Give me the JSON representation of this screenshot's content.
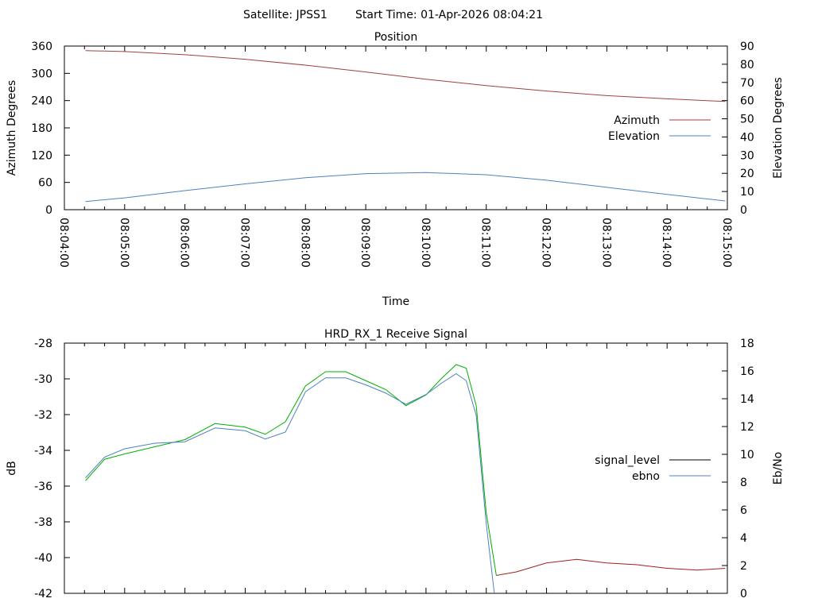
{
  "header": {
    "satellite_label": "Satellite: JPSS1",
    "start_time_label": "Start Time: 01-Apr-2026 08:04:21"
  },
  "chart_data": [
    {
      "type": "line",
      "title": "Position",
      "xlabel": "Time",
      "ylabel": "Azimuth Degrees",
      "y2label": "Elevation Degrees",
      "x_ticks": [
        "08:04:00",
        "08:05:00",
        "08:06:00",
        "08:07:00",
        "08:08:00",
        "08:09:00",
        "08:10:00",
        "08:11:00",
        "08:12:00",
        "08:13:00",
        "08:14:00",
        "08:15:00"
      ],
      "xlim": [
        "08:04:00",
        "08:15:00"
      ],
      "ylim": [
        0,
        360
      ],
      "y_ticks": [
        0,
        60,
        120,
        180,
        240,
        300,
        360
      ],
      "y2lim": [
        0,
        90
      ],
      "y2_ticks": [
        0,
        10,
        20,
        30,
        40,
        50,
        60,
        70,
        80,
        90
      ],
      "legend_position": "right",
      "series": [
        {
          "name": "Azimuth",
          "axis": "y",
          "color": "#a04040",
          "x": [
            "08:04:21",
            "08:05:00",
            "08:06:00",
            "08:07:00",
            "08:08:00",
            "08:09:00",
            "08:10:00",
            "08:11:00",
            "08:12:00",
            "08:13:00",
            "08:14:00",
            "08:14:58"
          ],
          "values": [
            350,
            348,
            341,
            331,
            318,
            303,
            287,
            273,
            261,
            251,
            244,
            238
          ]
        },
        {
          "name": "Elevation",
          "axis": "y2",
          "color": "#4f81bd",
          "x": [
            "08:04:21",
            "08:05:00",
            "08:06:00",
            "08:07:00",
            "08:08:00",
            "08:09:00",
            "08:10:00",
            "08:11:00",
            "08:12:00",
            "08:13:00",
            "08:14:00",
            "08:14:58"
          ],
          "values": [
            4.5,
            6.5,
            10.5,
            14.2,
            17.6,
            19.8,
            20.4,
            19.2,
            16.2,
            12.3,
            8.4,
            4.8
          ]
        }
      ]
    },
    {
      "type": "line",
      "title": "HRD_RX_1 Receive Signal",
      "xlabel": "",
      "ylabel": "dB",
      "y2label": "Eb/No",
      "xlim": [
        "08:04:00",
        "08:15:00"
      ],
      "ylim": [
        -42,
        -28
      ],
      "y_ticks": [
        -42,
        -40,
        -38,
        -36,
        -34,
        -32,
        -30,
        -28
      ],
      "y2lim": [
        0,
        18
      ],
      "y2_ticks": [
        0,
        2,
        4,
        6,
        8,
        10,
        12,
        14,
        16,
        18
      ],
      "legend_position": "right",
      "series": [
        {
          "name": "signal_level",
          "axis": "y",
          "color": "#000000",
          "segment_colors": {
            "default": "#00b000",
            "low_signal": "#a02020"
          },
          "x": [
            "08:04:21",
            "08:04:40",
            "08:05:00",
            "08:05:30",
            "08:06:00",
            "08:06:30",
            "08:07:00",
            "08:07:20",
            "08:07:40",
            "08:08:00",
            "08:08:20",
            "08:08:40",
            "08:09:00",
            "08:09:20",
            "08:09:40",
            "08:10:00",
            "08:10:15",
            "08:10:30",
            "08:10:40",
            "08:10:50",
            "08:11:00",
            "08:11:10",
            "08:11:30",
            "08:12:00",
            "08:12:30",
            "08:13:00",
            "08:13:30",
            "08:14:00",
            "08:14:30",
            "08:14:58"
          ],
          "values": [
            -35.7,
            -34.5,
            -34.2,
            -33.8,
            -33.4,
            -32.5,
            -32.7,
            -33.1,
            -32.4,
            -30.4,
            -29.6,
            -29.6,
            -30.1,
            -30.6,
            -31.5,
            -30.9,
            -30.0,
            -29.2,
            -29.4,
            -31.5,
            -37.5,
            -41.0,
            -40.8,
            -40.3,
            -40.1,
            -40.3,
            -40.4,
            -40.6,
            -40.7,
            -40.6
          ]
        },
        {
          "name": "ebno",
          "axis": "y2",
          "color": "#4f81bd",
          "x": [
            "08:04:21",
            "08:04:40",
            "08:05:00",
            "08:05:30",
            "08:06:00",
            "08:06:30",
            "08:07:00",
            "08:07:20",
            "08:07:40",
            "08:08:00",
            "08:08:20",
            "08:08:40",
            "08:09:00",
            "08:09:20",
            "08:09:40",
            "08:10:00",
            "08:10:15",
            "08:10:30",
            "08:10:40",
            "08:10:50",
            "08:11:00",
            "08:11:08"
          ],
          "values": [
            8.3,
            9.8,
            10.4,
            10.8,
            10.9,
            11.9,
            11.7,
            11.1,
            11.6,
            14.5,
            15.5,
            15.5,
            15.0,
            14.4,
            13.6,
            14.3,
            15.1,
            15.8,
            15.3,
            12.8,
            5.0,
            0.0
          ]
        }
      ]
    }
  ]
}
